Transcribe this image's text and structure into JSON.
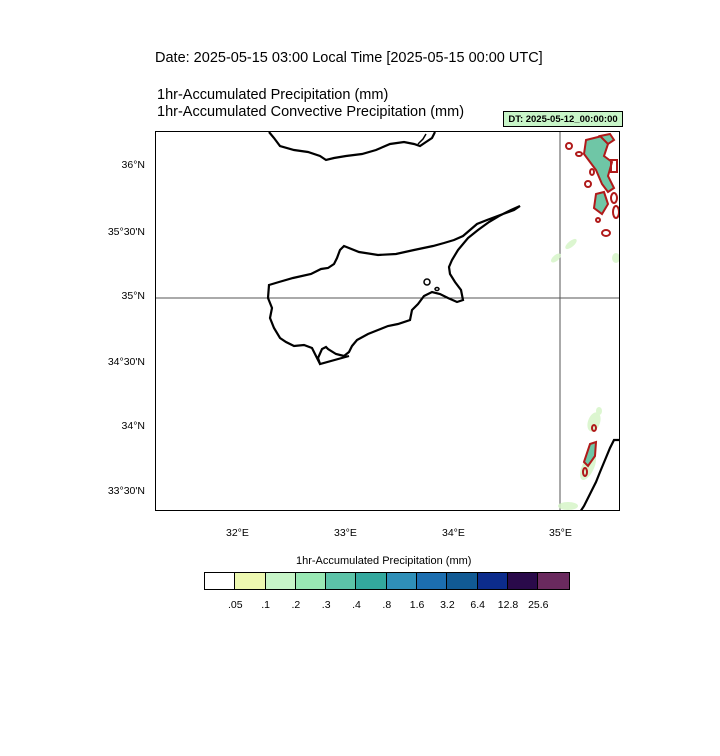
{
  "header": {
    "date_line": "Date: 2025-05-15  03:00 Local Time [2025-05-15  00:00 UTC]",
    "title_1": "1hr-Accumulated Precipitation   (mm)",
    "title_2": "1hr-Accumulated Convective Precipitation   (mm)",
    "dt_badge": "DT: 2025-05-12_00:00:00",
    "dt_badge_color": "#c8f5c8"
  },
  "map": {
    "region": "Cyprus",
    "lat_labels": [
      "36°N",
      "35°30'N",
      "35°N",
      "34°30'N",
      "34°N",
      "33°30'N"
    ],
    "lon_labels": [
      "32°E",
      "33°E",
      "34°E",
      "35°E"
    ],
    "reference_lines": {
      "latitude": "35°N",
      "longitude": "35°E"
    },
    "coastline_color": "#000000",
    "convective_contour_color": "#b01a1a"
  },
  "colorbar": {
    "title": "1hr-Accumulated Precipitation  (mm)",
    "colors": [
      "#ffffff",
      "#edf8b1",
      "#c7f5c8",
      "#99e8b4",
      "#5cc3a8",
      "#33a89e",
      "#2f8fb8",
      "#1c6eb0",
      "#115a94",
      "#0c2c8c",
      "#2a0a4a",
      "#6a2a5e"
    ],
    "labels": [
      ".05",
      ".1",
      ".2",
      ".3",
      ".4",
      ".8",
      "1.6",
      "3.2",
      "6.4",
      "12.8",
      "25.6"
    ]
  }
}
